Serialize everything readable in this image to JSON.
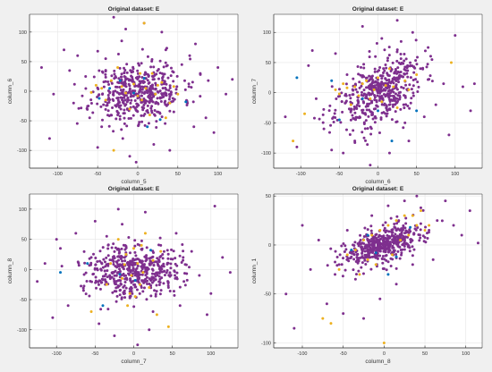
{
  "colors": {
    "purple": "#7E2F8E",
    "orange": "#EDB120",
    "blue": "#0072BD",
    "figure_bg": "#f0f0f0",
    "axes_bg": "#ffffff",
    "grid": "#e6e6e6",
    "axis": "#262626"
  },
  "chart_data": [
    {
      "type": "scatter",
      "title": "Original dataset: E",
      "xlabel": "column_5",
      "ylabel": "column_6",
      "xlim": [
        -135,
        125
      ],
      "ylim": [
        -130,
        130
      ],
      "xticks": [
        -100,
        -50,
        0,
        50,
        100
      ],
      "yticks": [
        -100,
        -50,
        0,
        50,
        100
      ],
      "grid": true,
      "series": [
        {
          "color": "purple",
          "cloud": {
            "n": 480,
            "sx": 28,
            "sy": 26,
            "rho": 0.15,
            "seed": 11
          },
          "points": [
            [
              -120,
              40
            ],
            [
              -110,
              -80
            ],
            [
              -92,
              70
            ],
            [
              -80,
              -20
            ],
            [
              -65,
              25
            ],
            [
              -50,
              -95
            ],
            [
              -45,
              -60
            ],
            [
              -30,
              125
            ],
            [
              -25,
              -40
            ],
            [
              -15,
              105
            ],
            [
              -10,
              -110
            ],
            [
              -2,
              -120
            ],
            [
              8,
              115
            ],
            [
              20,
              -90
            ],
            [
              35,
              70
            ],
            [
              45,
              -35
            ],
            [
              55,
              45
            ],
            [
              62,
              -20
            ],
            [
              70,
              -60
            ],
            [
              78,
              30
            ],
            [
              88,
              18
            ],
            [
              95,
              -70
            ],
            [
              100,
              40
            ],
            [
              110,
              -5
            ],
            [
              118,
              20
            ],
            [
              -105,
              -5
            ],
            [
              -75,
              60
            ],
            [
              -60,
              -45
            ],
            [
              -40,
              55
            ],
            [
              40,
              -100
            ],
            [
              72,
              80
            ],
            [
              85,
              -45
            ],
            [
              -85,
              35
            ],
            [
              30,
              100
            ],
            [
              -20,
              85
            ]
          ]
        },
        {
          "color": "orange",
          "points": [
            [
              -58,
              -2
            ],
            [
              -52,
              10
            ],
            [
              -40,
              -15
            ],
            [
              -33,
              18
            ],
            [
              -30,
              -100
            ],
            [
              -20,
              8
            ],
            [
              -15,
              -3
            ],
            [
              -10,
              -30
            ],
            [
              -5,
              12
            ],
            [
              0,
              -8
            ],
            [
              3,
              30
            ],
            [
              5,
              -15
            ],
            [
              8,
              115
            ],
            [
              10,
              5
            ],
            [
              15,
              -40
            ],
            [
              18,
              30
            ],
            [
              22,
              -5
            ],
            [
              25,
              10
            ],
            [
              30,
              15
            ],
            [
              40,
              -20
            ],
            [
              45,
              8
            ],
            [
              -45,
              5
            ],
            [
              35,
              -45
            ],
            [
              -25,
              40
            ],
            [
              50,
              -5
            ]
          ]
        },
        {
          "color": "blue",
          "points": [
            [
              -48,
              -12
            ],
            [
              -22,
              18
            ],
            [
              -5,
              -3
            ],
            [
              8,
              22
            ],
            [
              28,
              -48
            ],
            [
              60,
              -18
            ],
            [
              -35,
              5
            ],
            [
              12,
              -60
            ]
          ]
        }
      ]
    },
    {
      "type": "scatter",
      "title": "Original dataset: E",
      "xlabel": "column_6",
      "ylabel": "column_7",
      "xlim": [
        -135,
        135
      ],
      "ylim": [
        -125,
        130
      ],
      "xticks": [
        -100,
        -50,
        0,
        50,
        100
      ],
      "yticks": [
        -100,
        -50,
        0,
        50,
        100
      ],
      "grid": true,
      "series": [
        {
          "color": "purple",
          "cloud": {
            "n": 480,
            "sx": 28,
            "sy": 30,
            "rho": 0.45,
            "seed": 23
          },
          "points": [
            [
              -120,
              -40
            ],
            [
              -105,
              -90
            ],
            [
              -90,
              45
            ],
            [
              -80,
              -10
            ],
            [
              -70,
              -60
            ],
            [
              -55,
              65
            ],
            [
              -45,
              -100
            ],
            [
              -40,
              30
            ],
            [
              -30,
              -80
            ],
            [
              -20,
              110
            ],
            [
              -10,
              -120
            ],
            [
              5,
              90
            ],
            [
              15,
              -100
            ],
            [
              25,
              120
            ],
            [
              35,
              -50
            ],
            [
              45,
              100
            ],
            [
              55,
              40
            ],
            [
              65,
              75
            ],
            [
              75,
              -20
            ],
            [
              85,
              15
            ],
            [
              92,
              -70
            ],
            [
              100,
              95
            ],
            [
              110,
              10
            ],
            [
              120,
              -30
            ],
            [
              125,
              15
            ],
            [
              -60,
              -95
            ],
            [
              40,
              -80
            ],
            [
              70,
              55
            ],
            [
              -85,
              70
            ],
            [
              60,
              -40
            ],
            [
              30,
              85
            ]
          ]
        },
        {
          "color": "orange",
          "points": [
            [
              -110,
              -80
            ],
            [
              -95,
              -35
            ],
            [
              -55,
              5
            ],
            [
              -45,
              15
            ],
            [
              -40,
              8
            ],
            [
              -30,
              10
            ],
            [
              -25,
              -5
            ],
            [
              -20,
              15
            ],
            [
              -15,
              20
            ],
            [
              -10,
              -10
            ],
            [
              -5,
              5
            ],
            [
              0,
              25
            ],
            [
              5,
              -15
            ],
            [
              10,
              12
            ],
            [
              15,
              40
            ],
            [
              20,
              10
            ],
            [
              25,
              -25
            ],
            [
              35,
              20
            ],
            [
              50,
              30
            ],
            [
              95,
              50
            ],
            [
              -35,
              -20
            ],
            [
              -50,
              -2
            ],
            [
              40,
              5
            ]
          ]
        },
        {
          "color": "blue",
          "points": [
            [
              -105,
              25
            ],
            [
              -50,
              -45
            ],
            [
              -20,
              -10
            ],
            [
              0,
              -30
            ],
            [
              18,
              -80
            ],
            [
              50,
              -30
            ],
            [
              -60,
              20
            ]
          ]
        }
      ]
    },
    {
      "type": "scatter",
      "title": "Original dataset: E",
      "xlabel": "column_7",
      "ylabel": "column_8",
      "xlim": [
        -135,
        135
      ],
      "ylim": [
        -130,
        125
      ],
      "xticks": [
        -100,
        -50,
        0,
        50,
        100
      ],
      "yticks": [
        -100,
        -50,
        0,
        50,
        100
      ],
      "grid": true,
      "series": [
        {
          "color": "purple",
          "cloud": {
            "n": 480,
            "sx": 30,
            "sy": 22,
            "rho": 0.05,
            "seed": 37
          },
          "points": [
            [
              -125,
              -20
            ],
            [
              -115,
              10
            ],
            [
              -105,
              -80
            ],
            [
              -95,
              35
            ],
            [
              -85,
              -60
            ],
            [
              -75,
              60
            ],
            [
              -65,
              -35
            ],
            [
              -55,
              20
            ],
            [
              -45,
              -90
            ],
            [
              -35,
              55
            ],
            [
              -25,
              -110
            ],
            [
              -15,
              75
            ],
            [
              -5,
              -45
            ],
            [
              5,
              -125
            ],
            [
              15,
              95
            ],
            [
              25,
              -70
            ],
            [
              35,
              40
            ],
            [
              45,
              -30
            ],
            [
              55,
              60
            ],
            [
              65,
              -20
            ],
            [
              75,
              30
            ],
            [
              85,
              -10
            ],
            [
              95,
              -75
            ],
            [
              105,
              105
            ],
            [
              115,
              20
            ],
            [
              125,
              -5
            ],
            [
              -50,
              80
            ],
            [
              60,
              -60
            ],
            [
              -100,
              50
            ],
            [
              100,
              -40
            ],
            [
              20,
              -100
            ],
            [
              -20,
              100
            ]
          ]
        },
        {
          "color": "orange",
          "points": [
            [
              -55,
              -70
            ],
            [
              -35,
              -25
            ],
            [
              -20,
              50
            ],
            [
              -15,
              -15
            ],
            [
              -10,
              25
            ],
            [
              -5,
              -40
            ],
            [
              -3,
              -10
            ],
            [
              0,
              35
            ],
            [
              2,
              -45
            ],
            [
              5,
              10
            ],
            [
              8,
              -25
            ],
            [
              10,
              40
            ],
            [
              12,
              -5
            ],
            [
              15,
              60
            ],
            [
              20,
              -30
            ],
            [
              25,
              15
            ],
            [
              30,
              -75
            ],
            [
              45,
              -95
            ],
            [
              -8,
              -60
            ],
            [
              -12,
              8
            ],
            [
              35,
              30
            ],
            [
              -30,
              10
            ]
          ]
        },
        {
          "color": "blue",
          "points": [
            [
              -95,
              -5
            ],
            [
              -40,
              -60
            ],
            [
              -18,
              -8
            ],
            [
              2,
              -18
            ],
            [
              22,
              32
            ],
            [
              -60,
              10
            ]
          ]
        }
      ]
    },
    {
      "type": "scatter",
      "title": "Original dataset: E",
      "xlabel": "column_8",
      "ylabel": "column_1",
      "xlim": [
        -135,
        120
      ],
      "ylim": [
        -105,
        52
      ],
      "xticks": [
        -100,
        -50,
        0,
        50,
        100
      ],
      "yticks": [
        -100,
        -50,
        0,
        50
      ],
      "grid": true,
      "series": [
        {
          "color": "purple",
          "cloud": {
            "n": 480,
            "sx": 26,
            "sy": 11,
            "rho": 0.55,
            "seed": 53
          },
          "points": [
            [
              -120,
              -50
            ],
            [
              -110,
              -85
            ],
            [
              -100,
              20
            ],
            [
              -90,
              -25
            ],
            [
              -80,
              5
            ],
            [
              -70,
              -60
            ],
            [
              -60,
              -30
            ],
            [
              -50,
              -70
            ],
            [
              -45,
              15
            ],
            [
              -35,
              -35
            ],
            [
              -25,
              -75
            ],
            [
              -15,
              30
            ],
            [
              -5,
              -55
            ],
            [
              5,
              40
            ],
            [
              15,
              -40
            ],
            [
              25,
              45
            ],
            [
              35,
              -20
            ],
            [
              45,
              38
            ],
            [
              55,
              15
            ],
            [
              65,
              25
            ],
            [
              75,
              45
            ],
            [
              85,
              20
            ],
            [
              95,
              10
            ],
            [
              105,
              35
            ],
            [
              115,
              2
            ],
            [
              40,
              50
            ],
            [
              -55,
              -20
            ],
            [
              60,
              -15
            ]
          ]
        },
        {
          "color": "orange",
          "points": [
            [
              -75,
              -75
            ],
            [
              -65,
              -80
            ],
            [
              -55,
              -25
            ],
            [
              -45,
              -10
            ],
            [
              -35,
              -5
            ],
            [
              -25,
              5
            ],
            [
              -20,
              -15
            ],
            [
              -15,
              10
            ],
            [
              -10,
              -20
            ],
            [
              -5,
              15
            ],
            [
              0,
              -100
            ],
            [
              5,
              20
            ],
            [
              10,
              -10
            ],
            [
              15,
              25
            ],
            [
              20,
              5
            ],
            [
              25,
              30
            ],
            [
              30,
              10
            ],
            [
              35,
              30
            ],
            [
              40,
              20
            ],
            [
              45,
              35
            ],
            [
              50,
              15
            ],
            [
              55,
              20
            ],
            [
              -30,
              -30
            ]
          ]
        },
        {
          "color": "blue",
          "points": [
            [
              -40,
              -5
            ],
            [
              -10,
              -8
            ],
            [
              5,
              -30
            ],
            [
              15,
              -12
            ],
            [
              32,
              18
            ],
            [
              -20,
              10
            ]
          ]
        }
      ]
    }
  ]
}
